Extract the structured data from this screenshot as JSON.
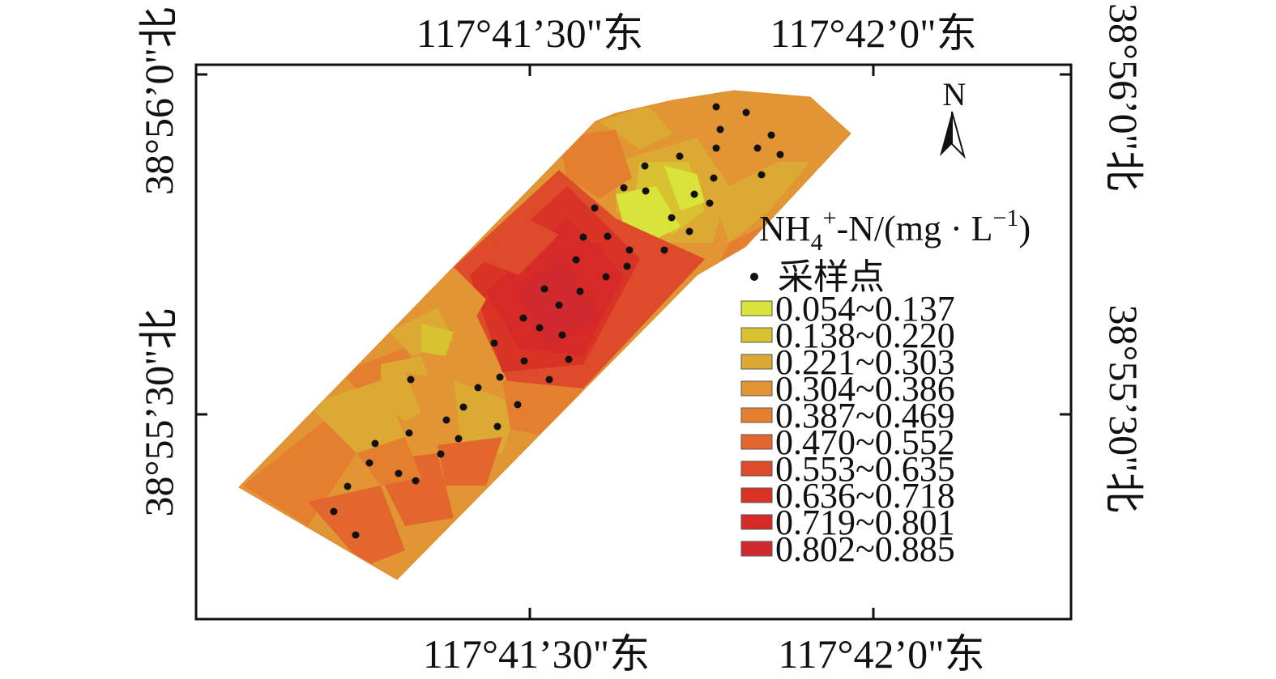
{
  "top_axis": {
    "labels": [
      "117°41’30\"东",
      "117°42’0\"东"
    ]
  },
  "bottom_axis": {
    "labels": [
      "117°41’30\"东",
      "117°42’0\"东"
    ]
  },
  "left_axis": {
    "labels": [
      "38°56’0\"北",
      "38°55’30\"北"
    ]
  },
  "right_axis": {
    "labels": [
      "38°56’0\"北",
      "38°55’30\"北"
    ]
  },
  "north_arrow": {
    "label": "N",
    "icon": "north-arrow-icon"
  },
  "legend": {
    "title_main": "NH",
    "title_sub": "4",
    "title_sup": "+",
    "title_rest": "-N/(mg · L",
    "title_exp": "−1",
    "title_close": ")",
    "sample_label": "采样点",
    "classes": [
      {
        "label": "0.054~0.137",
        "color": "#d9e33a"
      },
      {
        "label": "0.138~0.220",
        "color": "#d8c22f"
      },
      {
        "label": "0.221~0.303",
        "color": "#dcaa32"
      },
      {
        "label": "0.304~0.386",
        "color": "#e29533"
      },
      {
        "label": "0.387~0.469",
        "color": "#e57f30"
      },
      {
        "label": "0.470~0.552",
        "color": "#e2662d"
      },
      {
        "label": "0.553~0.635",
        "color": "#dd4b2a"
      },
      {
        "label": "0.636~0.718",
        "color": "#d93326"
      },
      {
        "label": "0.719~0.801",
        "color": "#d72a28"
      },
      {
        "label": "0.802~0.885",
        "color": "#d12a2e"
      }
    ]
  }
}
